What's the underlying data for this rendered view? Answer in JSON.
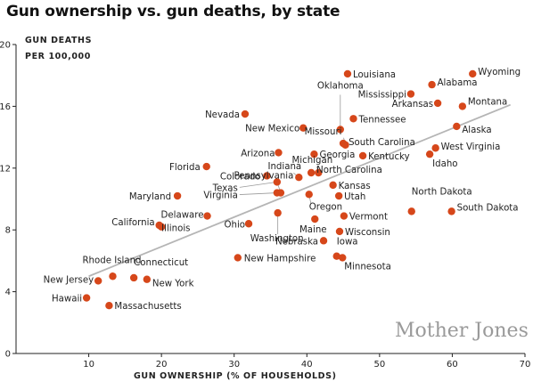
{
  "chart_data": {
    "type": "scatter",
    "title": "Gun ownership vs. gun deaths, by state",
    "ylabel_lines": [
      "GUN DEATHS",
      "PER 100,000"
    ],
    "xlabel": "GUN OWNERSHIP (% OF HOUSEHOLDS)",
    "xlim": [
      0,
      70
    ],
    "ylim": [
      0,
      20
    ],
    "xticks": [
      10,
      20,
      30,
      40,
      50,
      60,
      70
    ],
    "yticks": [
      0,
      4,
      8,
      12,
      16,
      20
    ],
    "grid": false,
    "trendline": {
      "x": [
        10,
        68
      ],
      "y": [
        5.0,
        16.1
      ]
    },
    "colors": {
      "point": "#d6471a",
      "trend": "#b5b5b5",
      "axis": "#222222"
    },
    "points": [
      {
        "name": "Louisiana",
        "x": 45.6,
        "y": 18.1
      },
      {
        "name": "Wyoming",
        "x": 62.8,
        "y": 18.1
      },
      {
        "name": "Alabama",
        "x": 57.2,
        "y": 17.4
      },
      {
        "name": "Mississippi",
        "x": 54.3,
        "y": 16.8
      },
      {
        "name": "Montana",
        "x": 61.4,
        "y": 16.0
      },
      {
        "name": "Arkansas",
        "x": 58.0,
        "y": 16.2
      },
      {
        "name": "Nevada",
        "x": 31.5,
        "y": 15.5
      },
      {
        "name": "Oklahoma",
        "x": 44.6,
        "y": 14.5
      },
      {
        "name": "Missouri",
        "x": 45.3,
        "y": 13.5
      },
      {
        "name": "Tennessee",
        "x": 46.4,
        "y": 15.2
      },
      {
        "name": "New Mexico",
        "x": 39.5,
        "y": 14.6
      },
      {
        "name": "Alaska",
        "x": 60.6,
        "y": 14.7
      },
      {
        "name": "South Carolina",
        "x": 45.0,
        "y": 13.6
      },
      {
        "name": "Georgia",
        "x": 41.0,
        "y": 12.9
      },
      {
        "name": "Kentucky",
        "x": 47.7,
        "y": 12.8
      },
      {
        "name": "West Virginia",
        "x": 57.7,
        "y": 13.3
      },
      {
        "name": "Idaho",
        "x": 56.9,
        "y": 12.9
      },
      {
        "name": "Arizona",
        "x": 36.1,
        "y": 13.0
      },
      {
        "name": "Florida",
        "x": 26.2,
        "y": 12.1
      },
      {
        "name": "Michigan",
        "x": 41.6,
        "y": 11.7
      },
      {
        "name": "Indiana",
        "x": 38.9,
        "y": 11.4
      },
      {
        "name": "North Carolina",
        "x": 40.6,
        "y": 11.7
      },
      {
        "name": "Colorado",
        "x": 34.5,
        "y": 11.5
      },
      {
        "name": "Texas",
        "x": 35.9,
        "y": 11.1
      },
      {
        "name": "Kansas",
        "x": 43.6,
        "y": 10.9
      },
      {
        "name": "Virginia",
        "x": 35.9,
        "y": 10.4
      },
      {
        "name": "Oregon",
        "x": 40.3,
        "y": 10.3
      },
      {
        "name": "Utah",
        "x": 44.4,
        "y": 10.2
      },
      {
        "name": "Maryland",
        "x": 22.2,
        "y": 10.2
      },
      {
        "name": "Pennsylvania",
        "x": 36.4,
        "y": 10.4
      },
      {
        "name": "North Dakota",
        "x": 54.4,
        "y": 9.2
      },
      {
        "name": "South Dakota",
        "x": 59.9,
        "y": 9.2
      },
      {
        "name": "Delaware",
        "x": 26.3,
        "y": 8.9
      },
      {
        "name": "Vermont",
        "x": 45.1,
        "y": 8.9
      },
      {
        "name": "Washington",
        "x": 36.0,
        "y": 9.1
      },
      {
        "name": "Maine",
        "x": 41.1,
        "y": 8.7
      },
      {
        "name": "California",
        "x": 19.7,
        "y": 8.3
      },
      {
        "name": "Illinois",
        "x": 20.0,
        "y": 8.2
      },
      {
        "name": "Ohio",
        "x": 32.0,
        "y": 8.4
      },
      {
        "name": "Wisconsin",
        "x": 44.5,
        "y": 7.9
      },
      {
        "name": "Nebraska",
        "x": 42.3,
        "y": 7.3
      },
      {
        "name": "Iowa",
        "x": 44.1,
        "y": 6.3
      },
      {
        "name": "Minnesota",
        "x": 44.9,
        "y": 6.2
      },
      {
        "name": "New Hampshire",
        "x": 30.5,
        "y": 6.2
      },
      {
        "name": "Rhode Island",
        "x": 13.3,
        "y": 5.0
      },
      {
        "name": "Connecticut",
        "x": 16.2,
        "y": 4.9
      },
      {
        "name": "New Jersey",
        "x": 11.3,
        "y": 4.7
      },
      {
        "name": "New York",
        "x": 18.0,
        "y": 4.8
      },
      {
        "name": "Hawaii",
        "x": 9.7,
        "y": 3.6
      },
      {
        "name": "Massachusetts",
        "x": 12.8,
        "y": 3.1
      }
    ]
  },
  "branding": {
    "logo_text": "Mother Jones"
  }
}
